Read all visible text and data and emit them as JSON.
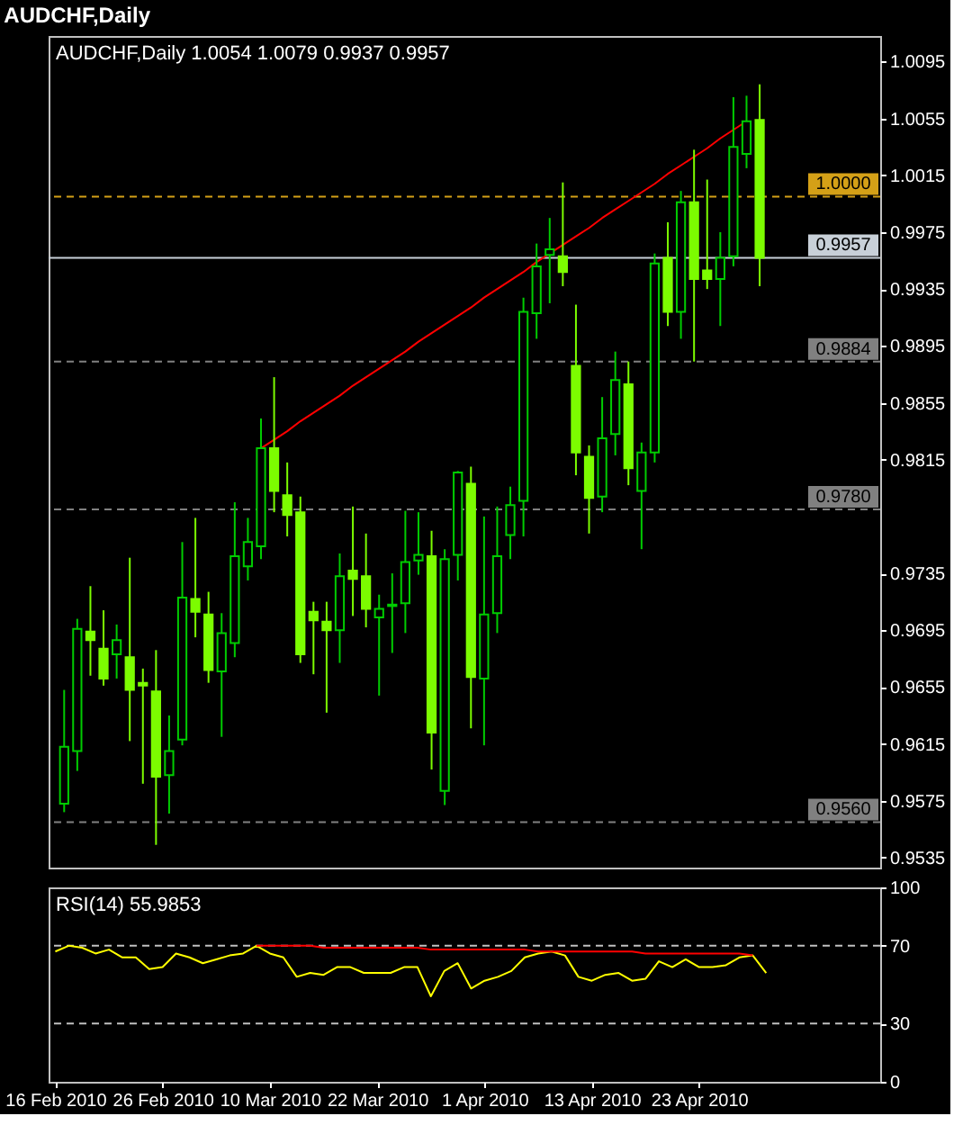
{
  "chart_data": [
    {
      "type": "candlestick",
      "title": "AUDCHF,Daily",
      "subtitle": "AUDCHF,Daily 1.0054 1.0079 0.9937 0.9957",
      "categories": [
        null,
        null,
        null,
        null,
        null,
        null,
        null,
        null,
        null,
        null,
        null,
        null,
        null,
        null,
        null,
        null,
        null,
        null,
        null,
        null,
        null,
        null,
        null,
        null,
        null,
        null,
        null,
        null,
        null,
        null,
        null,
        null,
        null,
        null,
        null,
        null,
        null,
        null,
        null,
        null,
        null,
        null,
        null,
        null,
        null,
        null,
        null,
        null,
        null,
        null,
        null,
        null,
        null,
        null
      ],
      "ohlc": [
        [
          0.9573,
          0.9653,
          0.9567,
          0.9613
        ],
        [
          0.961,
          0.9703,
          0.9596,
          0.9696
        ],
        [
          0.9694,
          0.9726,
          0.9663,
          0.9688
        ],
        [
          0.9682,
          0.9709,
          0.9656,
          0.9661
        ],
        [
          0.9678,
          0.9699,
          0.9661,
          0.9688
        ],
        [
          0.9676,
          0.9746,
          0.9617,
          0.9653
        ],
        [
          0.9658,
          0.9668,
          0.9587,
          0.9656
        ],
        [
          0.9652,
          0.9681,
          0.9544,
          0.9592
        ],
        [
          0.9593,
          0.9635,
          0.9566,
          0.961
        ],
        [
          0.9618,
          0.9757,
          0.9614,
          0.9718
        ],
        [
          0.9717,
          0.9774,
          0.969,
          0.9708
        ],
        [
          0.9706,
          0.9722,
          0.9658,
          0.9667
        ],
        [
          0.9666,
          0.9707,
          0.962,
          0.9693
        ],
        [
          0.9686,
          0.9785,
          0.9676,
          0.9747
        ],
        [
          0.974,
          0.9774,
          0.973,
          0.9757
        ],
        [
          0.9754,
          0.9844,
          0.9745,
          0.9823
        ],
        [
          0.9823,
          0.9873,
          0.9778,
          0.9793
        ],
        [
          0.979,
          0.9813,
          0.9761,
          0.9776
        ],
        [
          0.9778,
          0.9789,
          0.9672,
          0.9678
        ],
        [
          0.9708,
          0.9715,
          0.9664,
          0.9702
        ],
        [
          0.9701,
          0.9715,
          0.9637,
          0.9695
        ],
        [
          0.9695,
          0.9749,
          0.9672,
          0.9733
        ],
        [
          0.9737,
          0.9782,
          0.9705,
          0.9731
        ],
        [
          0.9733,
          0.9763,
          0.9697,
          0.971
        ],
        [
          0.9704,
          0.972,
          0.9649,
          0.971
        ],
        [
          0.9712,
          0.9735,
          0.9679,
          0.9713
        ],
        [
          0.9714,
          0.9779,
          0.9693,
          0.9743
        ],
        [
          0.9744,
          0.9778,
          0.9734,
          0.9748
        ],
        [
          0.9747,
          0.9765,
          0.9597,
          0.9623
        ],
        [
          0.9582,
          0.9752,
          0.9572,
          0.9745
        ],
        [
          0.9748,
          0.9807,
          0.973,
          0.9806
        ],
        [
          0.9798,
          0.981,
          0.9626,
          0.9662
        ],
        [
          0.9661,
          0.9775,
          0.9614,
          0.9706
        ],
        [
          0.9707,
          0.9782,
          0.9693,
          0.9747
        ],
        [
          0.9762,
          0.9796,
          0.9745,
          0.9783
        ],
        [
          0.9786,
          0.9929,
          0.9761,
          0.9919
        ],
        [
          0.9918,
          0.9967,
          0.99,
          0.9951
        ],
        [
          0.9959,
          0.9985,
          0.9925,
          0.9963
        ],
        [
          0.9958,
          1.001,
          0.9937,
          0.9947
        ],
        [
          0.9881,
          0.9924,
          0.9804,
          0.982
        ],
        [
          0.9817,
          0.9825,
          0.9763,
          0.9788
        ],
        [
          0.9789,
          0.9859,
          0.9778,
          0.983
        ],
        [
          0.9833,
          0.9891,
          0.9818,
          0.9871
        ],
        [
          0.9868,
          0.9884,
          0.9797,
          0.9809
        ],
        [
          0.9793,
          0.9827,
          0.9752,
          0.982
        ],
        [
          0.982,
          0.996,
          0.9813,
          0.9953
        ],
        [
          0.9957,
          0.9982,
          0.9909,
          0.9919
        ],
        [
          0.9919,
          1.0004,
          0.99,
          0.9996
        ],
        [
          0.9996,
          1.0033,
          0.9884,
          0.9942
        ],
        [
          0.9948,
          1.0012,
          0.9935,
          0.9942
        ],
        [
          0.9942,
          0.9975,
          0.9909,
          0.9957
        ],
        [
          0.9958,
          1.007,
          0.9951,
          1.0035
        ],
        [
          1.003,
          1.0071,
          1.002,
          1.0053
        ],
        [
          1.0054,
          1.0079,
          0.9937,
          0.9957
        ]
      ],
      "colors": [
        "#00cc00",
        "#00cc00",
        "#7cfc00",
        "#7cfc00",
        "#00cc00",
        "#7cfc00",
        "#7cfc00",
        "#7cfc00",
        "#00cc00",
        "#00cc00",
        "#7cfc00",
        "#7cfc00",
        "#00cc00",
        "#00cc00",
        "#00cc00",
        "#00cc00",
        "#7cfc00",
        "#7cfc00",
        "#7cfc00",
        "#7cfc00",
        "#7cfc00",
        "#00cc00",
        "#7cfc00",
        "#7cfc00",
        "#00cc00",
        "#00cc00",
        "#00cc00",
        "#00cc00",
        "#7cfc00",
        "#00cc00",
        "#00cc00",
        "#7cfc00",
        "#00cc00",
        "#00cc00",
        "#00cc00",
        "#00cc00",
        "#00cc00",
        "#00cc00",
        "#7cfc00",
        "#7cfc00",
        "#7cfc00",
        "#00cc00",
        "#00cc00",
        "#7cfc00",
        "#00cc00",
        "#00cc00",
        "#7cfc00",
        "#00cc00",
        "#7cfc00",
        "#7cfc00",
        "#00cc00",
        "#00cc00",
        "#00cc00",
        "#7cfc00"
      ],
      "series": [
        {
          "type": "line",
          "color": "#ff0000",
          "values": [
            null,
            null,
            null,
            null,
            null,
            null,
            null,
            null,
            null,
            null,
            null,
            null,
            null,
            null,
            null,
            0.9823,
            0.9829,
            0.9835,
            0.9842,
            0.9848,
            0.9854,
            0.986,
            0.9867,
            0.9873,
            0.9879,
            0.9885,
            0.9891,
            0.9898,
            0.9904,
            0.991,
            0.9916,
            0.9922,
            0.9929,
            0.9935,
            0.9941,
            0.9947,
            0.9954,
            0.996,
            0.9966,
            0.9972,
            0.9978,
            0.9985,
            0.9991,
            0.9997,
            1.0003,
            1.0009,
            1.0016,
            1.0022,
            1.0028,
            1.0034,
            1.0041,
            1.0047,
            1.0053,
            null
          ]
        }
      ],
      "ylim": [
        0.9528,
        1.0113
      ],
      "yticks": [
        1.0095,
        1.0055,
        1.0015,
        0.9975,
        0.9935,
        0.9895,
        0.9855,
        0.9815,
        0.9735,
        0.9695,
        0.9655,
        0.9615,
        0.9575,
        0.9535
      ],
      "ref_lines": [
        {
          "axis": "y",
          "value": 1.0,
          "label": "1.0000",
          "color": "#d4a017",
          "line_style": "dashed"
        },
        {
          "axis": "y",
          "value": 0.9957,
          "label": "0.9957",
          "color": "#c8d0d8",
          "line_style": "solid"
        },
        {
          "axis": "y",
          "value": 0.9884,
          "label": "0.9884",
          "color": "#808080",
          "line_style": "dashed"
        },
        {
          "axis": "y",
          "value": 0.978,
          "label": "0.9780",
          "color": "#808080",
          "line_style": "dashed"
        },
        {
          "axis": "y",
          "value": 0.956,
          "label": "0.9560",
          "color": "#808080",
          "line_style": "dashed"
        }
      ],
      "tick_labels": "y"
    },
    {
      "type": "line",
      "title": "RSI(14) 55.9853",
      "categories": [
        "16 Feb 2010",
        null,
        null,
        null,
        null,
        null,
        null,
        null,
        "26 Feb 2010",
        null,
        null,
        null,
        null,
        null,
        null,
        null,
        "10 Mar 2010",
        null,
        null,
        null,
        null,
        null,
        null,
        null,
        "22 Mar 2010",
        null,
        null,
        null,
        null,
        null,
        null,
        null,
        "1 Apr 2010",
        null,
        null,
        null,
        null,
        null,
        null,
        null,
        "13 Apr 2010",
        null,
        null,
        null,
        null,
        null,
        null,
        null,
        "23 Apr 2010",
        null,
        null,
        null,
        null,
        null
      ],
      "series": [
        {
          "color": "#ffff00",
          "values": [
            67,
            70,
            69,
            66,
            68,
            64,
            64,
            58,
            59,
            66,
            64,
            61,
            63,
            65,
            66,
            70,
            66,
            64,
            54,
            56,
            55,
            59,
            59,
            56,
            56,
            56,
            59,
            59,
            44,
            57,
            61,
            48,
            52,
            54,
            57,
            64,
            66,
            67,
            65,
            54,
            52,
            55,
            56,
            52,
            53,
            62,
            59,
            63,
            59,
            59,
            60,
            64,
            65,
            56
          ]
        },
        {
          "color": "#ff0000",
          "values": [
            null,
            null,
            null,
            null,
            null,
            null,
            null,
            null,
            null,
            null,
            null,
            null,
            null,
            null,
            null,
            70,
            70,
            70,
            70,
            70,
            69,
            69,
            69,
            69,
            69,
            69,
            69,
            69,
            68,
            68,
            68,
            68,
            68,
            68,
            68,
            68,
            67,
            67,
            67,
            67,
            67,
            67,
            67,
            67,
            66,
            66,
            66,
            66,
            66,
            66,
            66,
            66,
            65,
            null
          ]
        }
      ],
      "ylim": [
        0,
        100
      ],
      "yticks": [
        0,
        30,
        70,
        100
      ],
      "ref_lines": [
        {
          "axis": "y",
          "value": 70,
          "color": "#c0c0c0",
          "line_style": "dashed"
        },
        {
          "axis": "y",
          "value": 30,
          "color": "#c0c0c0",
          "line_style": "dashed"
        }
      ]
    }
  ]
}
